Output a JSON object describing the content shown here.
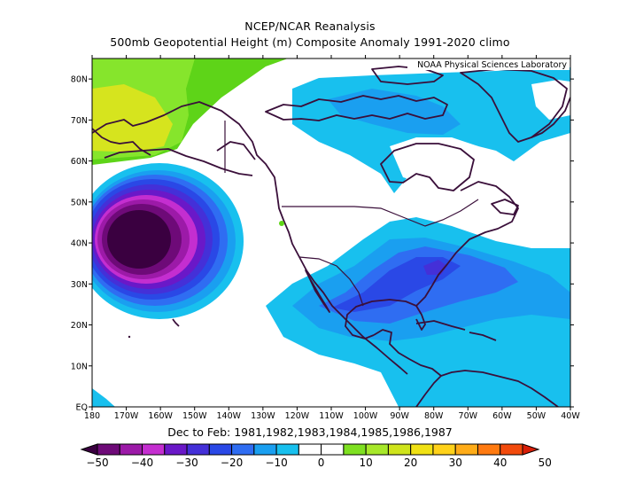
{
  "title_line1": "NCEP/NCAR Reanalysis",
  "title_line2": "500mb Geopotential Height (m) Composite Anomaly 1991-2020 climo",
  "credit": "NOAA Physical Sciences Laboratory",
  "footer": "Dec to Feb: 1981,1982,1983,1984,1985,1986,1987",
  "lat_labels": [
    "EQ",
    "10N",
    "20N",
    "30N",
    "40N",
    "50N",
    "60N",
    "70N",
    "80N"
  ],
  "lon_labels": [
    "180",
    "170W",
    "160W",
    "150W",
    "140W",
    "130W",
    "120W",
    "110W",
    "100W",
    "90W",
    "80W",
    "70W",
    "60W",
    "50W",
    "40W"
  ],
  "colorbar": {
    "labels": [
      "-50",
      "-40",
      "-30",
      "-20",
      "-10",
      "0",
      "10",
      "20",
      "30",
      "40",
      "50"
    ],
    "colors": [
      "#3a0040",
      "#6e0a78",
      "#9c1aa8",
      "#c42ed0",
      "#6a18c8",
      "#4430d8",
      "#2a48e6",
      "#2f6df2",
      "#1a9ff0",
      "#18c0ee",
      "#ffffff",
      "#ffffff",
      "#7ee021",
      "#a7e82a",
      "#cfe41c",
      "#f0e114",
      "#ffd21a",
      "#ffac18",
      "#ff7a10",
      "#f24a0c",
      "#d81e08"
    ]
  },
  "map": {
    "lon_range": [
      -180,
      -40
    ],
    "lat_range": [
      0,
      85
    ],
    "field": "500mb geopotential height anomaly (m)"
  }
}
